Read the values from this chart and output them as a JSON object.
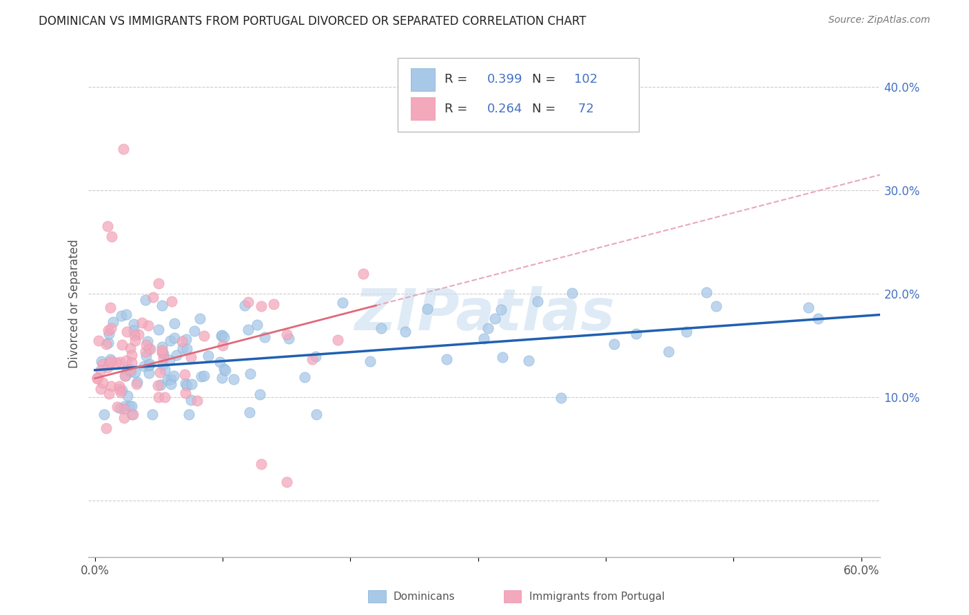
{
  "title": "DOMINICAN VS IMMIGRANTS FROM PORTUGAL DIVORCED OR SEPARATED CORRELATION CHART",
  "source": "Source: ZipAtlas.com",
  "ylabel_label": "Divorced or Separated",
  "x_tick_labels": [
    "0.0%",
    "",
    "",
    "",
    "",
    "",
    "60.0%"
  ],
  "y_tick_labels": [
    "",
    "10.0%",
    "20.0%",
    "30.0%",
    "40.0%"
  ],
  "xlim": [
    -0.005,
    0.615
  ],
  "ylim": [
    -0.055,
    0.435
  ],
  "blue_color": "#a8c8e8",
  "pink_color": "#f4a8bc",
  "blue_edge_color": "#7aafd4",
  "pink_edge_color": "#e890a8",
  "blue_line_color": "#2060b0",
  "pink_line_color": "#e06878",
  "pink_dash_color": "#e8a8b8",
  "grid_color": "#cccccc",
  "watermark_color": "#c8dff0",
  "legend_r_blue": "0.399",
  "legend_n_blue": "102",
  "legend_r_pink": "0.264",
  "legend_n_pink": "72",
  "label_dominicans": "Dominicans",
  "label_portugal": "Immigrants from Portugal",
  "title_color": "#222222",
  "source_color": "#777777",
  "tick_color_y": "#4472c4",
  "tick_color_x": "#555555",
  "ylabel_color": "#555555"
}
